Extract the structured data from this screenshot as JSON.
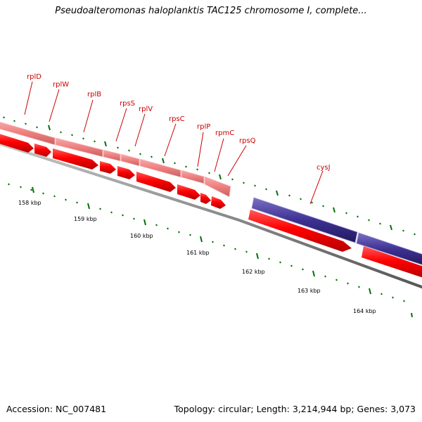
{
  "title": "Pseudoalteromonas haloplanktis TAC125 chromosome I, complete...",
  "footer": {
    "accession": "Accession: NC_007481",
    "summary": "Topology: circular; Length: 3,214,944 bp; Genes: 3,073"
  },
  "colors": {
    "gene_label": "#cc0000",
    "cds_red": "#ff0000",
    "cds_pink": "#f08080",
    "cds_blue": "#3a2e8c",
    "tick": "#007000",
    "backbone": "#888888"
  },
  "scale_labels": [
    "158 kbp",
    "159 kbp",
    "160 kbp",
    "161 kbp",
    "162 kbp",
    "163 kbp",
    "164 kbp"
  ],
  "genes": [
    {
      "name": "rplD"
    },
    {
      "name": "rplW"
    },
    {
      "name": "rplB"
    },
    {
      "name": "rpsS"
    },
    {
      "name": "rplV"
    },
    {
      "name": "rpsC"
    },
    {
      "name": "rplP"
    },
    {
      "name": "rpmC"
    },
    {
      "name": "rpsQ"
    },
    {
      "name": "cysJ"
    }
  ]
}
